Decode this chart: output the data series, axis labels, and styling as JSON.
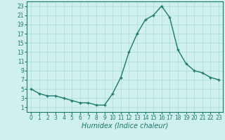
{
  "x": [
    0,
    1,
    2,
    3,
    4,
    5,
    6,
    7,
    8,
    9,
    10,
    11,
    12,
    13,
    14,
    15,
    16,
    17,
    18,
    19,
    20,
    21,
    22,
    23
  ],
  "y": [
    5,
    4,
    3.5,
    3.5,
    3,
    2.5,
    2,
    2,
    1.5,
    1.5,
    4,
    7.5,
    13,
    17,
    20,
    21,
    23,
    20.5,
    13.5,
    10.5,
    9,
    8.5,
    7.5,
    7
  ],
  "line_color": "#1a7a6e",
  "marker": "+",
  "bg_color": "#cff0ec",
  "grid_color": "#a8ddd8",
  "xlabel": "Humidex (Indice chaleur)",
  "yticks": [
    1,
    3,
    5,
    7,
    9,
    11,
    13,
    15,
    17,
    19,
    21,
    23
  ],
  "xticks": [
    0,
    1,
    2,
    3,
    4,
    5,
    6,
    7,
    8,
    9,
    10,
    11,
    12,
    13,
    14,
    15,
    16,
    17,
    18,
    19,
    20,
    21,
    22,
    23
  ],
  "ylim": [
    0,
    24
  ],
  "xlim": [
    -0.5,
    23.5
  ],
  "tick_fontsize": 5.5,
  "xlabel_fontsize": 7.0,
  "linewidth": 1.0,
  "markersize": 3.5,
  "markeredgewidth": 1.0
}
